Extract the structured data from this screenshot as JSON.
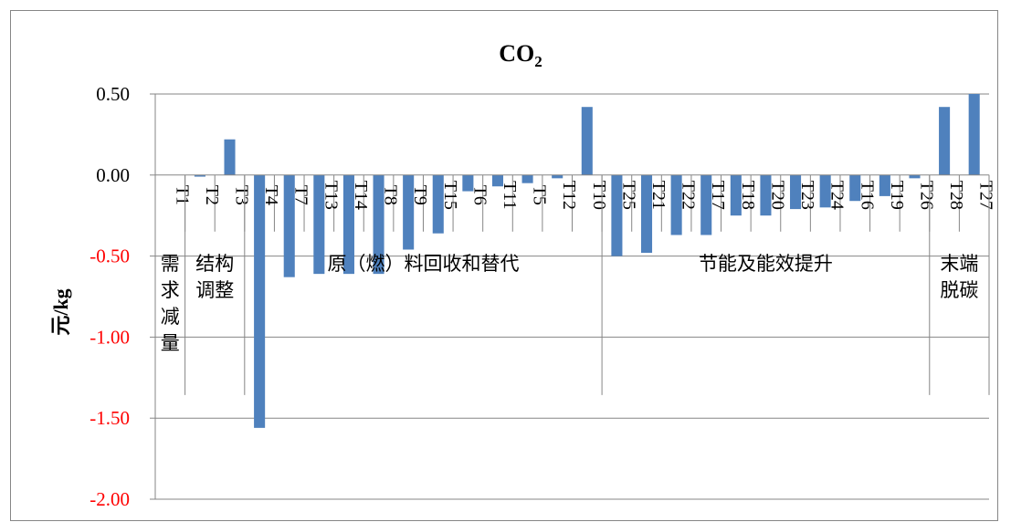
{
  "chart_data": {
    "type": "bar",
    "title": "CO",
    "title_subscript": "2",
    "xlabel": "",
    "ylabel": "元/kg",
    "ylim": [
      -2.0,
      0.5
    ],
    "y_ticks": [
      "0.50",
      "0.00",
      "-0.50",
      "-1.00",
      "-1.50",
      "-2.00"
    ],
    "y_tick_values": [
      0.5,
      0.0,
      -0.5,
      -1.0,
      -1.5,
      -2.0
    ],
    "positive_tick_color": "#000000",
    "negative_tick_color": "#ff0000",
    "bar_color": "#4f81bd",
    "grid": "horizontal",
    "categories": [
      "T1",
      "T2",
      "T3",
      "T4",
      "T7",
      "T13",
      "T14",
      "T8",
      "T9",
      "T15",
      "T6",
      "T11",
      "T5",
      "T12",
      "T10",
      "T25",
      "T21",
      "T22",
      "T17",
      "T18",
      "T20",
      "T23",
      "T24",
      "T16",
      "T19",
      "T26",
      "T28",
      "T27"
    ],
    "values": [
      0.0,
      -0.01,
      0.22,
      -1.56,
      -0.63,
      -0.61,
      -0.61,
      -0.61,
      -0.46,
      -0.36,
      -0.1,
      -0.07,
      -0.05,
      -0.02,
      0.42,
      -0.5,
      -0.48,
      -0.37,
      -0.37,
      -0.25,
      -0.25,
      -0.21,
      -0.2,
      -0.16,
      -0.13,
      -0.02,
      0.42,
      0.5
    ],
    "groups": [
      {
        "label": "需求减量",
        "lines": [
          "需",
          "求",
          "减",
          "量"
        ],
        "start": 0,
        "end": 0
      },
      {
        "label": "结构调整",
        "lines": [
          "结构",
          "调整"
        ],
        "start": 1,
        "end": 2
      },
      {
        "label": "原（燃）料回收和替代",
        "lines": [
          "原（燃）料回收和替代"
        ],
        "start": 3,
        "end": 14
      },
      {
        "label": "节能及能效提升",
        "lines": [
          "节能及能效提升"
        ],
        "start": 15,
        "end": 25
      },
      {
        "label": "末端脱碳",
        "lines": [
          "末端",
          "脱碳"
        ],
        "start": 26,
        "end": 27
      }
    ]
  }
}
